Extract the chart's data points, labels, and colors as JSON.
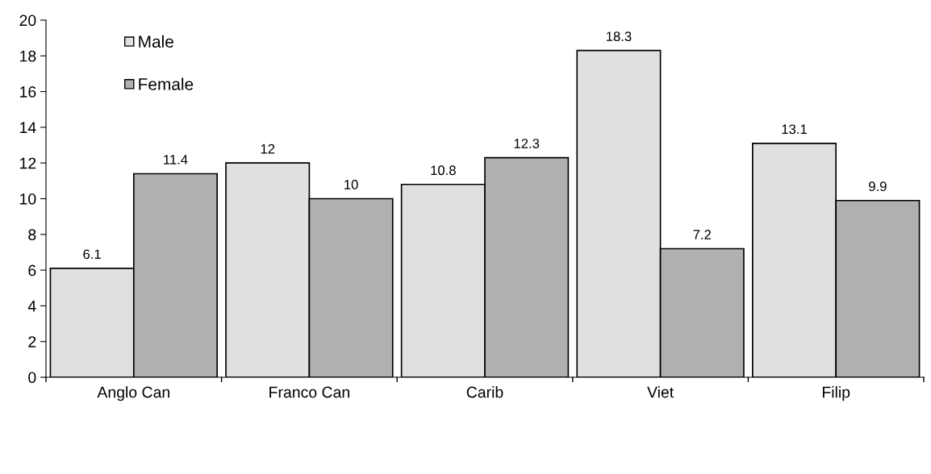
{
  "chart_data": {
    "type": "bar",
    "categories": [
      "Anglo Can",
      "Franco Can",
      "Carib",
      "Viet",
      "Filip"
    ],
    "series": [
      {
        "name": "Male",
        "color": "#e0e0e0",
        "values": [
          6.1,
          12,
          10.8,
          18.3,
          13.1
        ]
      },
      {
        "name": "Female",
        "color": "#b0b0b0",
        "values": [
          11.4,
          10,
          12.3,
          7.2,
          9.9
        ]
      }
    ],
    "ylim": [
      0,
      20
    ],
    "yticks": [
      0,
      2,
      4,
      6,
      8,
      10,
      12,
      14,
      16,
      18,
      20
    ],
    "data_labels": true,
    "legend": "top left",
    "grid": false
  }
}
